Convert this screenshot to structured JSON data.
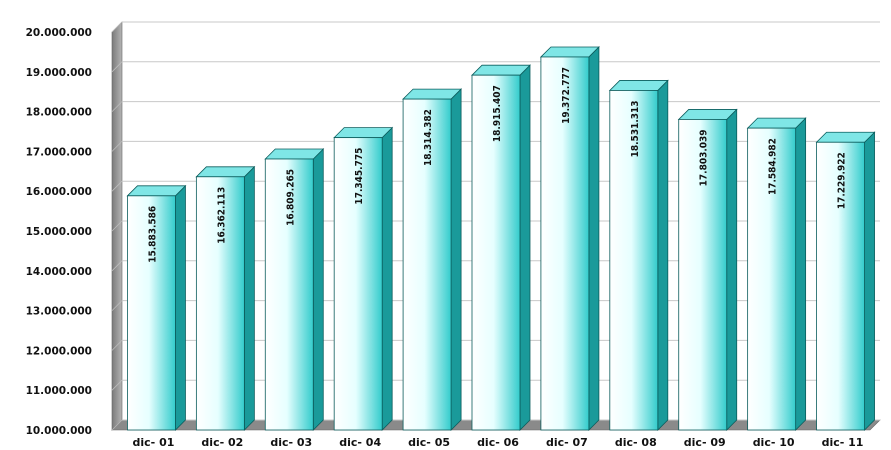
{
  "chart_data": {
    "type": "bar",
    "style": "3d-column",
    "categories": [
      "dic- 01",
      "dic- 02",
      "dic- 03",
      "dic- 04",
      "dic- 05",
      "dic- 06",
      "dic- 07",
      "dic- 08",
      "dic- 09",
      "dic- 10",
      "dic- 11"
    ],
    "values": [
      15883586,
      16362113,
      16809265,
      17345775,
      18314382,
      18915407,
      19372777,
      18531313,
      17803039,
      17584982,
      17229922
    ],
    "value_labels": [
      "15.883.586",
      "16.362.113",
      "16.809.265",
      "17.345.775",
      "18.314.382",
      "18.915.407",
      "19.372.777",
      "18.531.313",
      "17.803.039",
      "17.584.982",
      "17.229.922"
    ],
    "ylim": [
      10000000,
      20000000
    ],
    "yticks": [
      10000000,
      11000000,
      12000000,
      13000000,
      14000000,
      15000000,
      16000000,
      17000000,
      18000000,
      19000000,
      20000000
    ],
    "ytick_labels": [
      "10.000.000",
      "11.000.000",
      "12.000.000",
      "13.000.000",
      "14.000.000",
      "15.000.000",
      "16.000.000",
      "17.000.000",
      "18.000.000",
      "19.000.000",
      "20.000.000"
    ],
    "title": "",
    "xlabel": "",
    "ylabel": "",
    "grid": true,
    "legend": "none",
    "colors": {
      "bar_front_light": "#ffffff",
      "bar_front_dark": "#33cccc",
      "bar_side": "#1a9a9a",
      "bar_top": "#7fe6e6",
      "bar_edge": "#0b5c5c",
      "wall": "#9a9a9a",
      "grid": "#c8c8c8"
    }
  }
}
